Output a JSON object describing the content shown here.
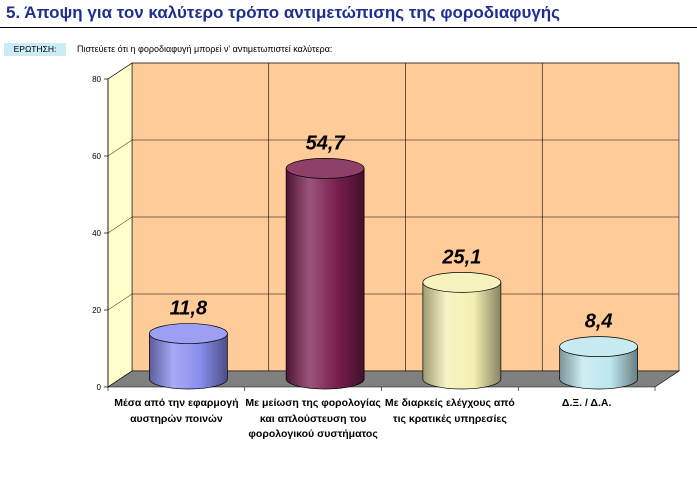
{
  "header": {
    "title": "5.   Άποψη για τον καλύτερο τρόπο αντιμετώπισης της φοροδιαφυγής",
    "question_tag": "ΕΡΩΤΗΣΗ:",
    "question_text": "Πιστεύετε ότι η φοροδιαφυγή μπορεί ν' αντιμετωπιστεί καλύτερα:"
  },
  "chart_data": {
    "type": "bar",
    "title": "5.   Άποψη για τον καλύτερο τρόπο αντιμετώπισης της φοροδιαφυγής",
    "categories": [
      "Μέσα από την εφαρμογή αυστηρών ποινών",
      "Με μείωση της φορολογίας και απλούστευση του φορολογικού συστήματος",
      "Με διαρκείς ελέγχους από τις κρατικές υπηρεσίες",
      "Δ.Ξ. / Δ.Α."
    ],
    "values": [
      11.8,
      54.7,
      25.1,
      8.4
    ],
    "data_labels": [
      "11,8",
      "54,7",
      "25,1",
      "8,4"
    ],
    "bar_colors": [
      "#8a8ef0",
      "#7a1e4e",
      "#f4f0b2",
      "#bde7ee"
    ],
    "ylim": [
      0,
      80
    ],
    "yticks": [
      0,
      20,
      40,
      60,
      80
    ],
    "ytick_labels": [
      "0",
      "20",
      "40",
      "60",
      "80"
    ],
    "grid": true,
    "style": "3d-cylinder",
    "background_color": "#ffcc99",
    "side_wall_color": "#ffffcc",
    "floor_color": "#808080"
  }
}
